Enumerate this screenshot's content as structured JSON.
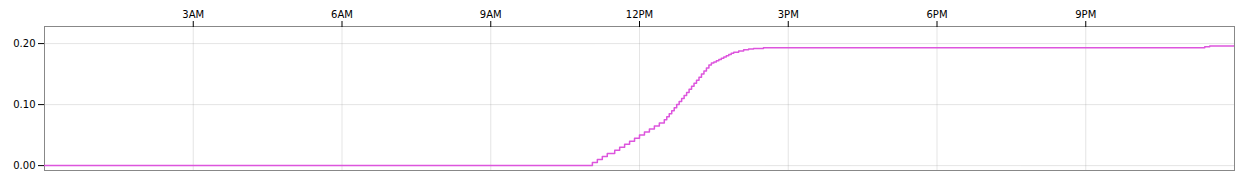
{
  "chart_data": {
    "type": "line",
    "line_style": "step",
    "color": "#dd55dd",
    "grid": true,
    "xlim": [
      0,
      24
    ],
    "xticks": [
      {
        "value": 3,
        "label": "3AM"
      },
      {
        "value": 6,
        "label": "6AM"
      },
      {
        "value": 9,
        "label": "9AM"
      },
      {
        "value": 12,
        "label": "12PM"
      },
      {
        "value": 15,
        "label": "3PM"
      },
      {
        "value": 18,
        "label": "6PM"
      },
      {
        "value": 21,
        "label": "9PM"
      }
    ],
    "ylim": [
      -0.008,
      0.228
    ],
    "yticks": [
      {
        "value": 0.0,
        "label": "0.00"
      },
      {
        "value": 0.1,
        "label": "0.10"
      },
      {
        "value": 0.2,
        "label": "0.20"
      }
    ],
    "x": [
      0.0,
      11.0,
      11.05,
      11.15,
      11.25,
      11.35,
      11.5,
      11.6,
      11.7,
      11.8,
      11.9,
      12.0,
      12.1,
      12.2,
      12.3,
      12.4,
      12.5,
      12.55,
      12.6,
      12.65,
      12.7,
      12.75,
      12.8,
      12.85,
      12.9,
      12.95,
      13.0,
      13.05,
      13.1,
      13.15,
      13.2,
      13.25,
      13.3,
      13.35,
      13.4,
      13.45,
      13.5,
      13.55,
      13.6,
      13.65,
      13.7,
      13.75,
      13.8,
      13.85,
      13.9,
      14.0,
      14.1,
      14.2,
      14.3,
      14.5,
      23.3,
      23.4,
      23.5,
      24.0
    ],
    "values": [
      0.0,
      0.0,
      0.005,
      0.01,
      0.015,
      0.02,
      0.025,
      0.03,
      0.035,
      0.04,
      0.045,
      0.05,
      0.055,
      0.06,
      0.065,
      0.07,
      0.075,
      0.08,
      0.085,
      0.09,
      0.095,
      0.1,
      0.105,
      0.11,
      0.115,
      0.12,
      0.125,
      0.13,
      0.135,
      0.14,
      0.145,
      0.15,
      0.155,
      0.16,
      0.165,
      0.168,
      0.17,
      0.172,
      0.174,
      0.176,
      0.178,
      0.18,
      0.182,
      0.184,
      0.186,
      0.188,
      0.19,
      0.191,
      0.192,
      0.193,
      0.193,
      0.195,
      0.196,
      0.197
    ]
  }
}
